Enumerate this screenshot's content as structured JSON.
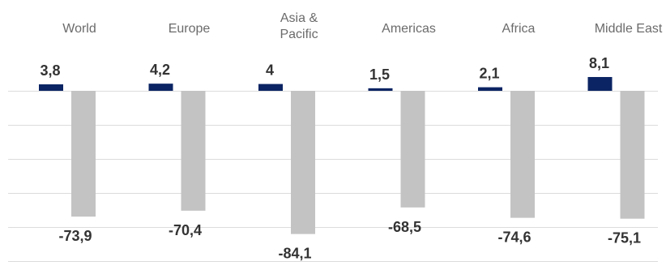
{
  "chart_data": {
    "type": "bar",
    "title": "",
    "xlabel": "",
    "ylabel": "",
    "categories": [
      "World",
      "Europe",
      "Asia & Pacific",
      "Americas",
      "Africa",
      "Middle East"
    ],
    "series": [
      {
        "values": [
          3.8,
          4.2,
          4,
          1.5,
          2.1,
          8.1
        ],
        "color": "#0b2463"
      },
      {
        "values": [
          -73.9,
          -70.4,
          -84.1,
          -68.5,
          -74.6,
          -75.1
        ],
        "color": "#c3c3c3"
      }
    ],
    "data_labels": [
      [
        "3,8",
        "4,2",
        "4",
        "1,5",
        "2,1",
        "8,1"
      ],
      [
        "-73,9",
        "-70,4",
        "-84,1",
        "-68,5",
        "-74,6",
        "-75,1"
      ]
    ],
    "ylim": [
      -100,
      10
    ],
    "grid": true,
    "legend": "none"
  }
}
